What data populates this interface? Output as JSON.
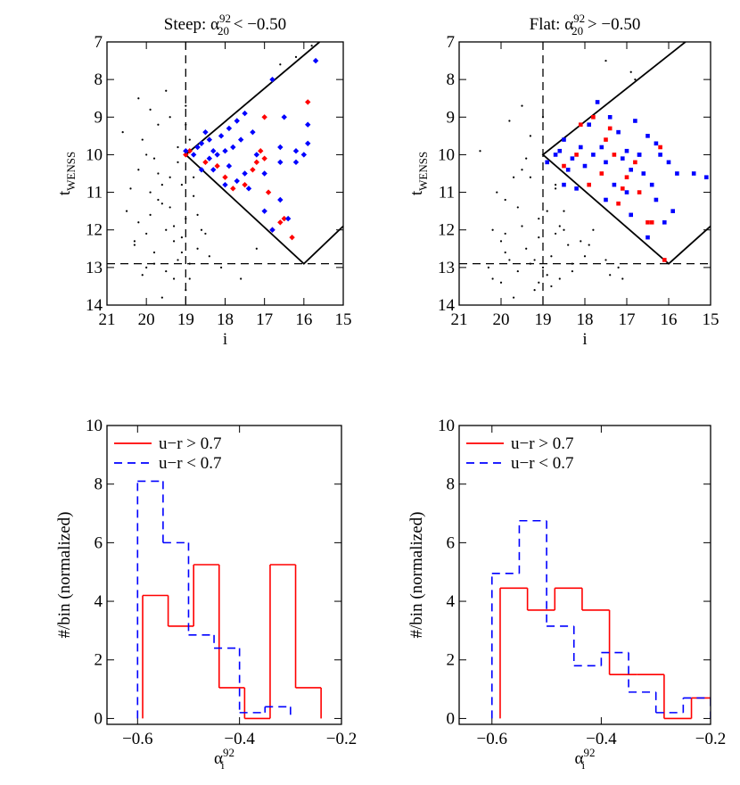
{
  "chart_data": [
    {
      "type": "scatter",
      "marker": "diamond",
      "title": {
        "text": "Steep: α",
        "sub": "20",
        "sup": "92",
        "rest": " < −0.50"
      },
      "x_label": {
        "text": "i"
      },
      "y_label": {
        "text": "t",
        "sub": "WENSS"
      },
      "xlim": [
        21,
        15
      ],
      "ylim": [
        14,
        7
      ],
      "xticks": [
        21,
        20,
        19,
        18,
        17,
        16,
        15
      ],
      "yticks": [
        7,
        8,
        9,
        10,
        11,
        12,
        13,
        14
      ],
      "vlines": [
        19
      ],
      "hlines": [
        12.9
      ],
      "boundary": {
        "x": [
          15.6,
          19,
          16,
          15
        ],
        "y": [
          7,
          10,
          12.9,
          11.9
        ]
      },
      "series": [
        {
          "color": "#000000",
          "x": [
            20.5,
            20.3,
            20.2,
            20.1,
            20.0,
            19.9,
            19.8,
            19.7,
            19.6,
            19.5,
            19.4,
            19.3,
            19.2,
            19.1,
            19.0,
            18.9,
            18.8,
            18.7,
            20.4,
            20.2,
            20.0,
            19.8,
            19.6,
            19.4,
            19.2,
            19.0,
            18.8,
            18.6,
            20.3,
            20.1,
            19.9,
            19.7,
            19.5,
            19.3,
            19.1,
            18.9,
            20.6,
            19.9,
            19.5,
            19.2,
            18.9,
            18.5,
            20.0,
            19.7,
            19.3,
            19.0,
            18.7,
            19.6,
            19.1,
            18.4,
            20.2,
            19.8,
            19.4,
            19.0,
            16.6,
            16.2,
            15.8,
            17.6,
            18.1,
            17.2
          ],
          "values": [
            11.5,
            12.3,
            10.4,
            9.6,
            13.0,
            11.0,
            12.6,
            9.2,
            10.8,
            12.0,
            11.4,
            13.3,
            9.8,
            12.2,
            11.7,
            12.9,
            10.6,
            12.5,
            10.9,
            11.8,
            12.1,
            10.1,
            11.3,
            9.0,
            12.8,
            13.6,
            11.1,
            12.0,
            12.4,
            13.2,
            8.8,
            10.5,
            13.1,
            11.9,
            12.6,
            13.3,
            9.4,
            11.6,
            8.3,
            10.2,
            9.6,
            12.1,
            10.0,
            11.2,
            12.3,
            8.7,
            11.6,
            13.8,
            10.8,
            12.7,
            8.5,
            12.9,
            10.6,
            9.2,
            7.6,
            7.4,
            7.1,
            13.3,
            13.0,
            12.5
          ]
        },
        {
          "color": "#ff0000",
          "x": [
            19.0,
            18.9,
            18.5,
            18.2,
            18.0,
            17.8,
            17.3,
            17.0,
            17.0,
            16.9,
            17.2,
            17.1,
            16.6,
            16.5,
            16.8,
            15.9,
            16.3,
            17.5
          ],
          "values": [
            10.0,
            9.9,
            10.2,
            10.3,
            10.6,
            10.9,
            10.4,
            10.1,
            9.0,
            11.0,
            10.2,
            9.9,
            11.8,
            11.7,
            12.0,
            8.6,
            12.2,
            10.8
          ]
        },
        {
          "color": "#0000ff",
          "x": [
            19.0,
            18.8,
            18.7,
            18.6,
            18.5,
            18.4,
            18.3,
            18.2,
            18.1,
            18.0,
            17.9,
            17.8,
            17.7,
            17.6,
            17.5,
            17.5,
            17.3,
            17.2,
            17.0,
            16.8,
            16.6,
            16.5,
            16.2,
            16.0,
            15.9,
            15.7,
            16.8,
            16.6,
            18.3,
            18.0,
            17.7,
            17.9,
            17.4,
            18.6,
            18.4,
            17.0,
            16.4,
            16.6,
            15.9,
            16.2
          ],
          "values": [
            9.9,
            10.0,
            9.8,
            9.7,
            9.4,
            9.6,
            9.9,
            10.0,
            9.5,
            9.9,
            9.3,
            9.8,
            9.1,
            9.6,
            10.5,
            8.9,
            9.4,
            10.0,
            10.5,
            8.0,
            9.8,
            9.0,
            9.9,
            10.0,
            9.7,
            7.5,
            12.0,
            11.2,
            10.4,
            10.8,
            10.7,
            10.3,
            10.9,
            10.4,
            10.1,
            11.5,
            11.7,
            10.2,
            9.2,
            10.2
          ]
        }
      ]
    },
    {
      "type": "scatter",
      "marker": "square",
      "title": {
        "text": "Flat: α",
        "sub": "20",
        "sup": "92",
        "rest": " > −0.50"
      },
      "x_label": {
        "text": "i"
      },
      "y_label": {
        "text": "t",
        "sub": "WENSS"
      },
      "xlim": [
        21,
        15
      ],
      "ylim": [
        14,
        7
      ],
      "xticks": [
        21,
        20,
        19,
        18,
        17,
        16,
        15
      ],
      "yticks": [
        7,
        8,
        9,
        10,
        11,
        12,
        13,
        14
      ],
      "vlines": [
        19
      ],
      "hlines": [
        12.9
      ],
      "boundary": {
        "x": [
          15.6,
          19,
          16,
          15
        ],
        "y": [
          7,
          10,
          12.9,
          11.9
        ]
      },
      "series": [
        {
          "color": "#000000",
          "x": [
            20.2,
            20.0,
            19.9,
            19.8,
            19.7,
            19.6,
            19.5,
            19.4,
            19.3,
            19.2,
            19.1,
            19.0,
            18.9,
            18.8,
            18.7,
            18.6,
            18.5,
            18.4,
            20.1,
            19.9,
            19.7,
            19.5,
            19.3,
            19.1,
            18.9,
            18.7,
            18.5,
            18.3,
            20.3,
            20.0,
            19.8,
            19.6,
            19.4,
            19.2,
            19.0,
            18.8,
            18.6,
            20.2,
            19.9,
            19.5,
            19.1,
            18.7,
            18.3,
            17.9,
            17.5,
            17.2,
            18.0,
            17.4,
            16.8,
            16.9,
            17.5,
            17.1,
            20.5,
            19.3,
            18.1,
            17.8
          ],
          "values": [
            12.0,
            13.4,
            11.2,
            12.8,
            10.6,
            13.1,
            11.9,
            12.5,
            9.5,
            13.6,
            12.2,
            13.0,
            11.5,
            12.7,
            10.8,
            13.3,
            12.0,
            12.4,
            11.0,
            12.6,
            13.8,
            10.4,
            12.9,
            11.7,
            13.2,
            12.1,
            11.5,
            12.9,
            13.0,
            12.3,
            9.1,
            11.4,
            10.1,
            12.8,
            9.0,
            13.5,
            11.9,
            13.3,
            12.1,
            8.7,
            13.4,
            10.9,
            13.1,
            12.4,
            12.8,
            13.0,
            12.7,
            13.2,
            8.0,
            7.8,
            7.5,
            13.3,
            9.9,
            10.6,
            12.3,
            12.0
          ]
        },
        {
          "color": "#ff0000",
          "x": [
            18.5,
            18.1,
            17.8,
            17.5,
            17.3,
            17.0,
            17.1,
            16.7,
            16.5,
            16.4,
            16.2,
            16.1,
            17.4,
            17.6,
            17.9,
            18.2,
            16.8,
            17.2
          ],
          "values": [
            10.3,
            9.2,
            9.0,
            9.6,
            10.0,
            10.6,
            10.9,
            11.0,
            11.8,
            11.8,
            9.8,
            12.8,
            9.3,
            10.5,
            10.8,
            10.0,
            10.2,
            11.3
          ]
        },
        {
          "color": "#0000ff",
          "x": [
            18.9,
            18.7,
            18.6,
            18.5,
            18.4,
            18.3,
            18.1,
            18.0,
            17.9,
            17.8,
            17.7,
            17.6,
            17.5,
            17.4,
            17.3,
            17.2,
            17.1,
            17.0,
            16.9,
            16.8,
            16.7,
            16.6,
            16.5,
            16.4,
            16.3,
            16.2,
            16.0,
            15.8,
            15.9,
            15.1,
            15.4,
            16.1,
            16.5,
            16.7,
            17.5,
            18.2,
            17.0,
            16.3,
            16.9,
            18.5
          ],
          "values": [
            10.2,
            10.0,
            9.9,
            9.6,
            10.4,
            10.1,
            9.8,
            10.3,
            9.2,
            10.0,
            8.6,
            9.8,
            10.2,
            9.0,
            10.8,
            9.4,
            10.1,
            9.9,
            10.4,
            9.1,
            10.0,
            10.5,
            9.5,
            10.8,
            11.2,
            10.0,
            10.2,
            10.5,
            11.5,
            10.6,
            10.5,
            11.8,
            12.2,
            10.0,
            11.2,
            10.9,
            11.0,
            9.7,
            11.6,
            10.8
          ]
        }
      ]
    },
    {
      "type": "histogram",
      "x_label": {
        "text": "α",
        "sub": "i",
        "sup": "92"
      },
      "y_label": {
        "text": "#/bin (normalized)"
      },
      "xlim": [
        -0.66,
        -0.2
      ],
      "ylim": [
        -0.2,
        10
      ],
      "xticks": [
        {
          "value": -0.6,
          "label": "−0.6"
        },
        {
          "value": -0.4,
          "label": "−0.4"
        },
        {
          "value": -0.2,
          "label": "−0.2"
        }
      ],
      "yticks": [
        0,
        2,
        4,
        6,
        8,
        10
      ],
      "legend": "upper-left",
      "series": [
        {
          "name": "u−r > 0.7",
          "color": "#ff0000",
          "dash": false,
          "bins": [
            -0.59,
            -0.54,
            -0.49,
            -0.44,
            -0.39,
            -0.34,
            -0.29,
            -0.24
          ],
          "values": [
            4.2,
            3.15,
            5.25,
            1.05,
            0,
            5.25,
            1.05
          ]
        },
        {
          "name": "u−r < 0.7",
          "color": "#0000ff",
          "dash": true,
          "bins": [
            -0.6,
            -0.55,
            -0.5,
            -0.45,
            -0.4,
            -0.35,
            -0.3
          ],
          "values": [
            8.1,
            6.0,
            2.85,
            2.4,
            0.2,
            0.4
          ]
        }
      ]
    },
    {
      "type": "histogram",
      "x_label": {
        "text": "α",
        "sub": "i",
        "sup": "92"
      },
      "y_label": {
        "text": "#/bin (normalized)"
      },
      "xlim": [
        -0.66,
        -0.2
      ],
      "ylim": [
        -0.2,
        10
      ],
      "xticks": [
        {
          "value": -0.6,
          "label": "−0.6"
        },
        {
          "value": -0.4,
          "label": "−0.4"
        },
        {
          "value": -0.2,
          "label": "−0.2"
        }
      ],
      "yticks": [
        0,
        2,
        4,
        6,
        8,
        10
      ],
      "legend": "upper-left",
      "series": [
        {
          "name": "u−r > 0.7",
          "color": "#ff0000",
          "dash": false,
          "bins": [
            -0.585,
            -0.535,
            -0.485,
            -0.435,
            -0.385,
            -0.335,
            -0.285,
            -0.235,
            -0.185
          ],
          "values": [
            4.45,
            3.7,
            4.45,
            3.7,
            1.5,
            1.5,
            0,
            0.7
          ]
        },
        {
          "name": "u−r < 0.7",
          "color": "#0000ff",
          "dash": true,
          "bins": [
            -0.6,
            -0.55,
            -0.5,
            -0.45,
            -0.4,
            -0.35,
            -0.3,
            -0.25,
            -0.2
          ],
          "values": [
            4.95,
            6.75,
            3.15,
            1.8,
            2.25,
            0.9,
            0.2,
            0.7
          ]
        }
      ]
    }
  ]
}
